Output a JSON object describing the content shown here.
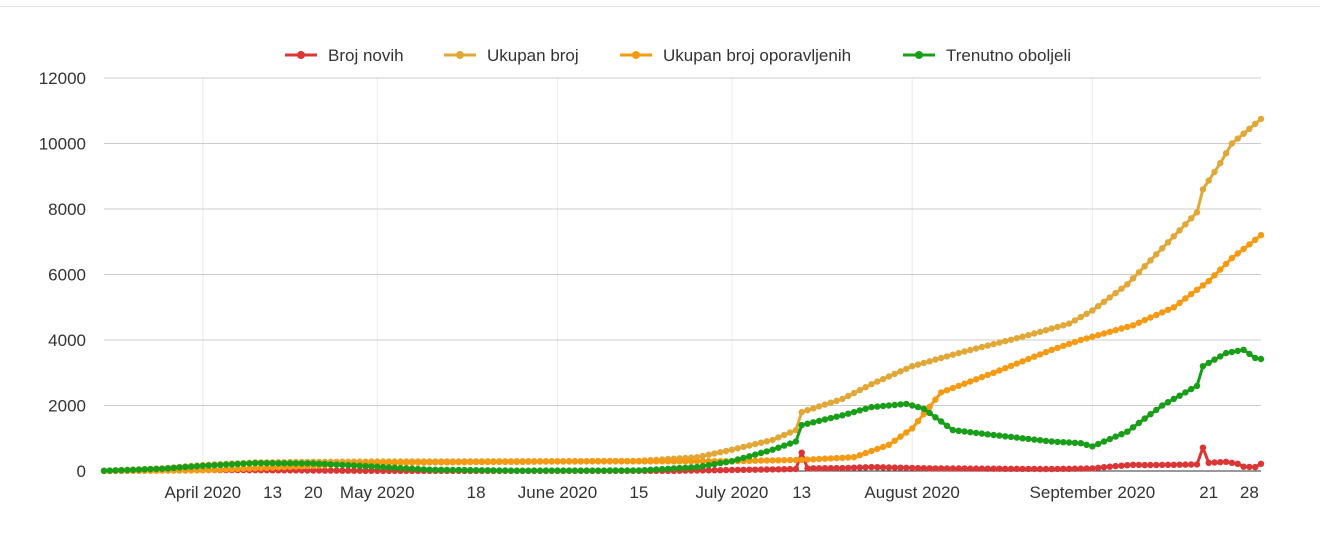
{
  "chart_data": {
    "type": "line",
    "title": "",
    "xlabel": "",
    "ylabel": "",
    "ylim": [
      0,
      12000
    ],
    "grid": true,
    "legend_position": "top",
    "y_ticks": [
      "0",
      "2000",
      "4000",
      "6000",
      "8000",
      "10000",
      "12000"
    ],
    "x_ticks": [
      {
        "label": "April 2020",
        "date": "2020-04-01"
      },
      {
        "label": "13",
        "date": "2020-04-13"
      },
      {
        "label": "20",
        "date": "2020-04-20"
      },
      {
        "label": "May 2020",
        "date": "2020-05-01"
      },
      {
        "label": "18",
        "date": "2020-05-18"
      },
      {
        "label": "June 2020",
        "date": "2020-06-01"
      },
      {
        "label": "15",
        "date": "2020-06-15"
      },
      {
        "label": "July 2020",
        "date": "2020-07-01"
      },
      {
        "label": "13",
        "date": "2020-07-13"
      },
      {
        "label": "August 2020",
        "date": "2020-08-01"
      },
      {
        "label": "September 2020",
        "date": "2020-09-01"
      },
      {
        "label": "21",
        "date": "2020-09-21"
      },
      {
        "label": "28",
        "date": "2020-09-28"
      }
    ],
    "x_range": [
      "2020-03-15",
      "2020-09-30"
    ],
    "series": [
      {
        "name": "Broj novih",
        "color": "#dc3535",
        "points": [
          [
            "2020-03-15",
            2
          ],
          [
            "2020-03-25",
            20
          ],
          [
            "2020-04-01",
            30
          ],
          [
            "2020-04-10",
            25
          ],
          [
            "2020-04-20",
            15
          ],
          [
            "2020-05-01",
            5
          ],
          [
            "2020-06-01",
            3
          ],
          [
            "2020-06-20",
            5
          ],
          [
            "2020-07-01",
            30
          ],
          [
            "2020-07-12",
            60
          ],
          [
            "2020-07-13",
            560
          ],
          [
            "2020-07-14",
            80
          ],
          [
            "2020-07-20",
            90
          ],
          [
            "2020-07-25",
            120
          ],
          [
            "2020-07-30",
            100
          ],
          [
            "2020-08-05",
            80
          ],
          [
            "2020-08-15",
            70
          ],
          [
            "2020-08-25",
            60
          ],
          [
            "2020-09-01",
            80
          ],
          [
            "2020-09-05",
            150
          ],
          [
            "2020-09-08",
            190
          ],
          [
            "2020-09-10",
            180
          ],
          [
            "2020-09-15",
            190
          ],
          [
            "2020-09-19",
            200
          ],
          [
            "2020-09-20",
            710
          ],
          [
            "2020-09-21",
            250
          ],
          [
            "2020-09-24",
            280
          ],
          [
            "2020-09-26",
            220
          ],
          [
            "2020-09-27",
            130
          ],
          [
            "2020-09-29",
            120
          ],
          [
            "2020-09-30",
            220
          ]
        ]
      },
      {
        "name": "Ukupan broj",
        "color": "#e1a838",
        "points": [
          [
            "2020-03-15",
            5
          ],
          [
            "2020-03-25",
            80
          ],
          [
            "2020-04-01",
            180
          ],
          [
            "2020-04-10",
            260
          ],
          [
            "2020-04-20",
            280
          ],
          [
            "2020-05-01",
            290
          ],
          [
            "2020-06-01",
            300
          ],
          [
            "2020-06-15",
            310
          ],
          [
            "2020-06-25",
            420
          ],
          [
            "2020-07-01",
            650
          ],
          [
            "2020-07-08",
            950
          ],
          [
            "2020-07-12",
            1250
          ],
          [
            "2020-07-13",
            1800
          ],
          [
            "2020-07-20",
            2200
          ],
          [
            "2020-07-25",
            2650
          ],
          [
            "2020-08-01",
            3200
          ],
          [
            "2020-08-10",
            3650
          ],
          [
            "2020-08-20",
            4100
          ],
          [
            "2020-08-28",
            4500
          ],
          [
            "2020-09-01",
            4900
          ],
          [
            "2020-09-07",
            5700
          ],
          [
            "2020-09-13",
            6800
          ],
          [
            "2020-09-19",
            7900
          ],
          [
            "2020-09-20",
            8600
          ],
          [
            "2020-09-23",
            9400
          ],
          [
            "2020-09-25",
            10000
          ],
          [
            "2020-09-30",
            10750
          ]
        ]
      },
      {
        "name": "Ukupan broj oporavljenih",
        "color": "#f59a12",
        "points": [
          [
            "2020-03-15",
            0
          ],
          [
            "2020-04-01",
            20
          ],
          [
            "2020-04-15",
            120
          ],
          [
            "2020-05-01",
            250
          ],
          [
            "2020-06-01",
            290
          ],
          [
            "2020-06-15",
            295
          ],
          [
            "2020-07-01",
            300
          ],
          [
            "2020-07-13",
            340
          ],
          [
            "2020-07-22",
            420
          ],
          [
            "2020-07-28",
            800
          ],
          [
            "2020-08-01",
            1300
          ],
          [
            "2020-08-06",
            2400
          ],
          [
            "2020-08-15",
            3000
          ],
          [
            "2020-08-25",
            3700
          ],
          [
            "2020-08-30",
            4000
          ],
          [
            "2020-09-08",
            4450
          ],
          [
            "2020-09-15",
            5000
          ],
          [
            "2020-09-21",
            5800
          ],
          [
            "2020-09-25",
            6500
          ],
          [
            "2020-09-30",
            7200
          ]
        ]
      },
      {
        "name": "Trenutno oboljeli",
        "color": "#189e18",
        "points": [
          [
            "2020-03-15",
            5
          ],
          [
            "2020-03-25",
            70
          ],
          [
            "2020-04-01",
            160
          ],
          [
            "2020-04-10",
            240
          ],
          [
            "2020-04-20",
            230
          ],
          [
            "2020-04-28",
            160
          ],
          [
            "2020-05-10",
            40
          ],
          [
            "2020-05-25",
            10
          ],
          [
            "2020-06-15",
            15
          ],
          [
            "2020-06-25",
            120
          ],
          [
            "2020-07-01",
            300
          ],
          [
            "2020-07-08",
            650
          ],
          [
            "2020-07-12",
            900
          ],
          [
            "2020-07-13",
            1400
          ],
          [
            "2020-07-20",
            1700
          ],
          [
            "2020-07-25",
            1950
          ],
          [
            "2020-07-31",
            2050
          ],
          [
            "2020-08-03",
            1900
          ],
          [
            "2020-08-08",
            1250
          ],
          [
            "2020-08-15",
            1100
          ],
          [
            "2020-08-25",
            900
          ],
          [
            "2020-08-30",
            850
          ],
          [
            "2020-09-01",
            750
          ],
          [
            "2020-09-07",
            1200
          ],
          [
            "2020-09-13",
            2000
          ],
          [
            "2020-09-19",
            2600
          ],
          [
            "2020-09-20",
            3200
          ],
          [
            "2020-09-24",
            3600
          ],
          [
            "2020-09-27",
            3700
          ],
          [
            "2020-09-29",
            3450
          ],
          [
            "2020-09-30",
            3420
          ]
        ]
      }
    ]
  }
}
